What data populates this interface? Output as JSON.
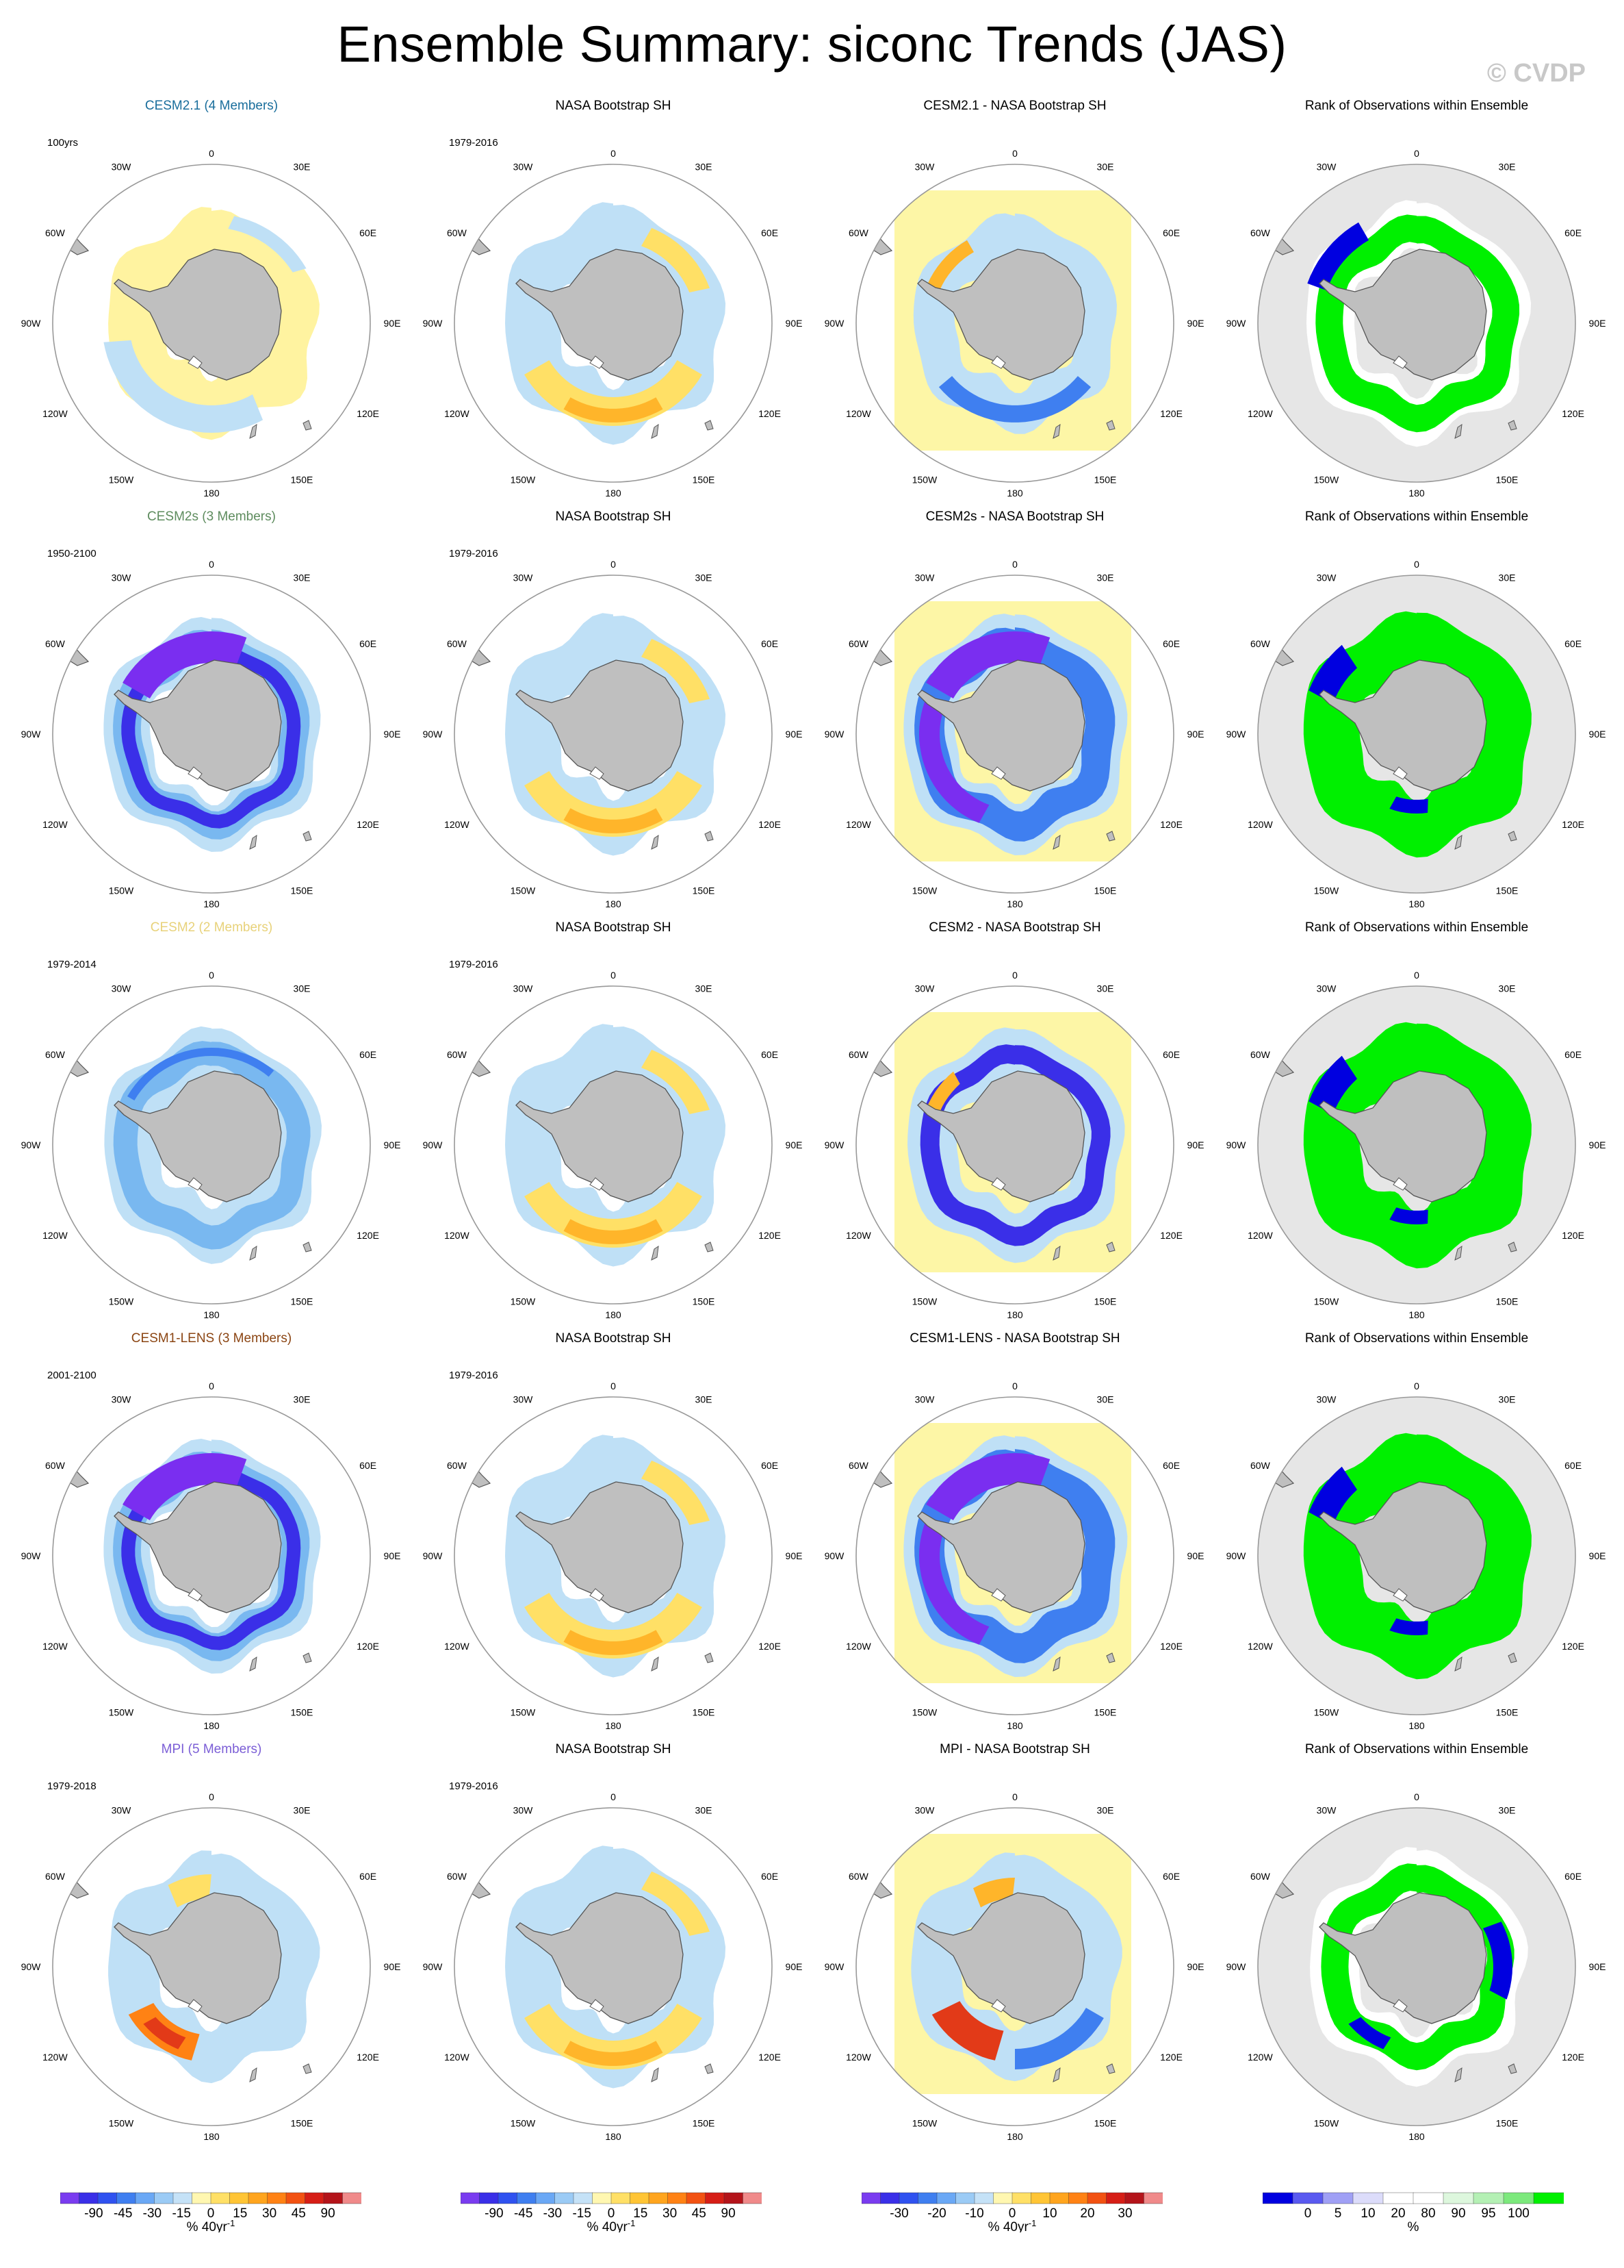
{
  "title": "Ensemble Summary: siconc Trends (JAS)",
  "watermark": "© CVDP",
  "lon_labels": [
    "0",
    "30E",
    "60E",
    "90E",
    "120E",
    "150E",
    "180",
    "150W",
    "120W",
    "90W",
    "60W",
    "30W"
  ],
  "colors": {
    "model_title_colors": [
      "#1a6e9c",
      "#5e8c5e",
      "#e8d27a",
      "#8b4513",
      "#7b5ed6"
    ],
    "land": "#bfbfbf",
    "ocean_rank_bg": "#e6e6e6",
    "difference_background": "#fdf6a6"
  },
  "chart_data": [
    {
      "type": "heatmap",
      "row": 1,
      "panels": [
        {
          "title": "CESM2.1 (4 Members)",
          "period": "100yrs",
          "pattern": "model_weak"
        },
        {
          "title": "NASA Bootstrap SH",
          "period": "1979-2016",
          "pattern": "obs"
        },
        {
          "title": "CESM2.1 - NASA Bootstrap SH",
          "period": "",
          "pattern": "diff_mixed"
        },
        {
          "title": "Rank of Observations within Ensemble",
          "period": "",
          "pattern": "rank_mixed"
        }
      ]
    },
    {
      "type": "heatmap",
      "row": 2,
      "panels": [
        {
          "title": "CESM2s (3 Members)",
          "period": "1950-2100",
          "pattern": "model_strong"
        },
        {
          "title": "NASA Bootstrap SH",
          "period": "1979-2016",
          "pattern": "obs"
        },
        {
          "title": "CESM2s - NASA Bootstrap SH",
          "period": "",
          "pattern": "diff_strong"
        },
        {
          "title": "Rank of Observations within Ensemble",
          "period": "",
          "pattern": "rank_green"
        }
      ]
    },
    {
      "type": "heatmap",
      "row": 3,
      "panels": [
        {
          "title": "CESM2 (2 Members)",
          "period": "1979-2014",
          "pattern": "model_medium"
        },
        {
          "title": "NASA Bootstrap SH",
          "period": "1979-2016",
          "pattern": "obs"
        },
        {
          "title": "CESM2 - NASA Bootstrap SH",
          "period": "",
          "pattern": "diff_medium"
        },
        {
          "title": "Rank of Observations within Ensemble",
          "period": "",
          "pattern": "rank_green"
        }
      ]
    },
    {
      "type": "heatmap",
      "row": 4,
      "panels": [
        {
          "title": "CESM1-LENS (3 Members)",
          "period": "2001-2100",
          "pattern": "model_strong"
        },
        {
          "title": "NASA Bootstrap SH",
          "period": "1979-2016",
          "pattern": "obs"
        },
        {
          "title": "CESM1-LENS - NASA Bootstrap SH",
          "period": "",
          "pattern": "diff_strong"
        },
        {
          "title": "Rank of Observations within Ensemble",
          "period": "",
          "pattern": "rank_green"
        }
      ]
    },
    {
      "type": "heatmap",
      "row": 5,
      "panels": [
        {
          "title": "MPI (5 Members)",
          "period": "1979-2018",
          "pattern": "model_mpi"
        },
        {
          "title": "NASA Bootstrap SH",
          "period": "1979-2016",
          "pattern": "obs"
        },
        {
          "title": "MPI - NASA Bootstrap SH",
          "period": "",
          "pattern": "diff_mpi"
        },
        {
          "title": "Rank of Observations within Ensemble",
          "period": "",
          "pattern": "rank_white"
        }
      ]
    }
  ],
  "colorbars": [
    {
      "labels": [
        "-90",
        "-45",
        "-30",
        "-15",
        "0",
        "15",
        "30",
        "45",
        "90"
      ],
      "units": "% 40yr",
      "units_sup": "-1",
      "colors": [
        "#7a3cf0",
        "#3a2fe8",
        "#2f52f0",
        "#3f7ff0",
        "#6aa8f5",
        "#9bcbf5",
        "#c5e2f7",
        "#fff7b0",
        "#ffe066",
        "#ffc535",
        "#ffa51e",
        "#ff8214",
        "#f25212",
        "#d61e16",
        "#b4141a",
        "#f08a8a"
      ]
    },
    {
      "labels": [
        "-90",
        "-45",
        "-30",
        "-15",
        "0",
        "15",
        "30",
        "45",
        "90"
      ],
      "units": "% 40yr",
      "units_sup": "-1",
      "colors": [
        "#7a3cf0",
        "#3a2fe8",
        "#2f52f0",
        "#3f7ff0",
        "#6aa8f5",
        "#9bcbf5",
        "#c5e2f7",
        "#fff7b0",
        "#ffe066",
        "#ffc535",
        "#ffa51e",
        "#ff8214",
        "#f25212",
        "#d61e16",
        "#b4141a",
        "#f08a8a"
      ]
    },
    {
      "labels": [
        "-30",
        "-20",
        "-10",
        "0",
        "10",
        "20",
        "30"
      ],
      "units": "% 40yr",
      "units_sup": "-1",
      "colors": [
        "#7a3cf0",
        "#3a2fe8",
        "#2f52f0",
        "#3f7ff0",
        "#6aa8f5",
        "#9bcbf5",
        "#c5e2f7",
        "#fff7b0",
        "#ffe066",
        "#ffc535",
        "#ffa51e",
        "#ff8214",
        "#f25212",
        "#d61e16",
        "#b4141a",
        "#f08a8a"
      ]
    },
    {
      "labels": [
        "0",
        "5",
        "10",
        "20",
        "80",
        "90",
        "95",
        "100"
      ],
      "units": "%",
      "units_sup": "",
      "colors": [
        "#0000e0",
        "#5a5af0",
        "#a0a0f5",
        "#dcdcfa",
        "#ffffff",
        "#ffffff",
        "#ddf7dd",
        "#b4f0b4",
        "#7ce97c",
        "#00f000"
      ]
    }
  ]
}
